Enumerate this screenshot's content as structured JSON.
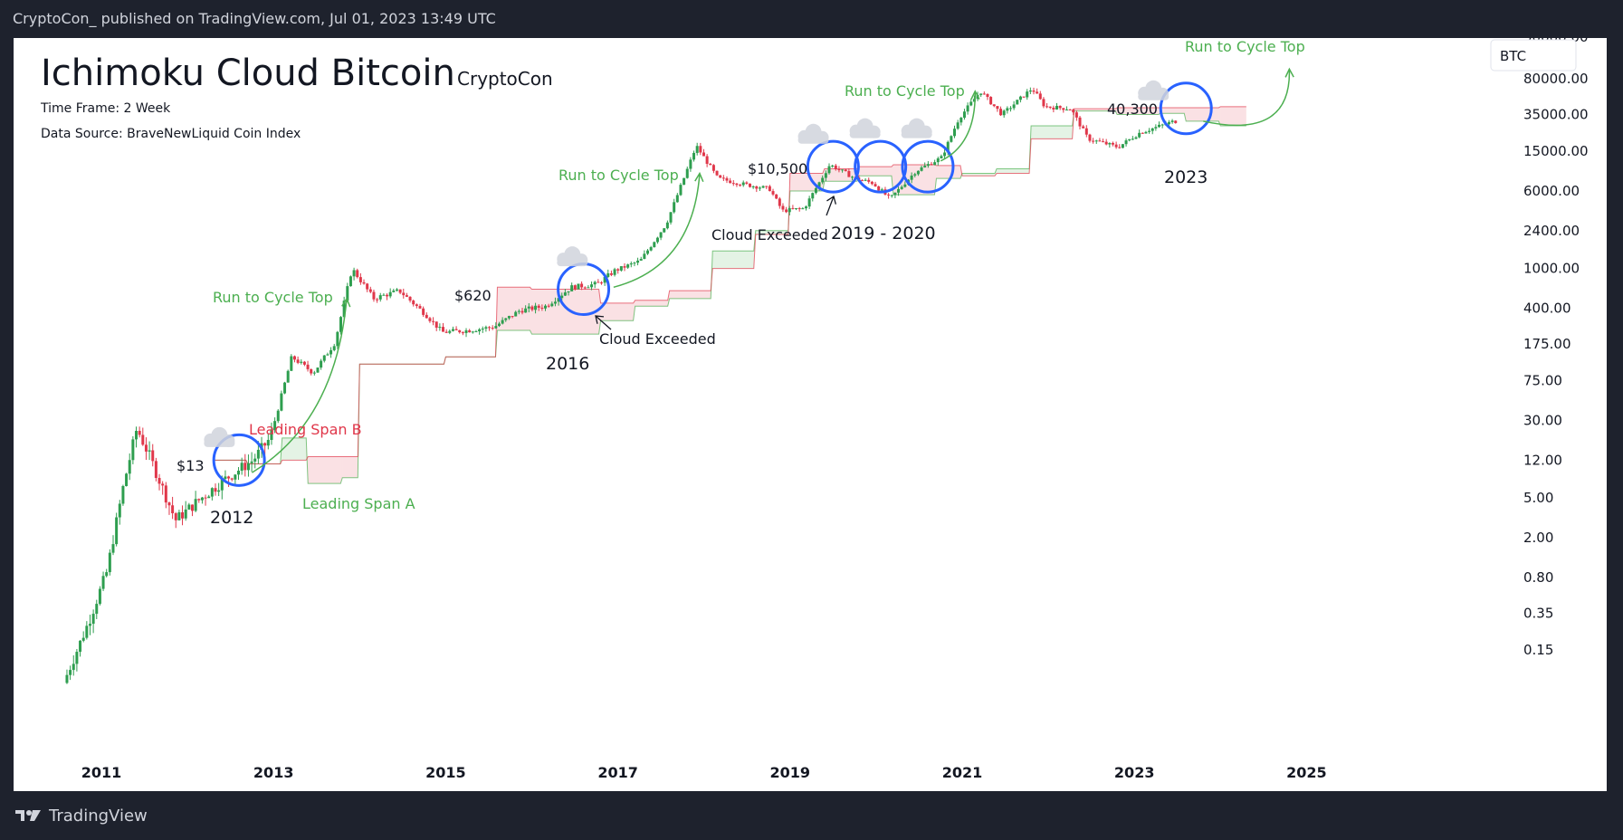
{
  "header": {
    "text": "CryptoCon_ published on TradingView.com, Jul 01, 2023 13:49 UTC"
  },
  "footer": {
    "brand": "TradingView"
  },
  "chart_data": {
    "type": "candlestick",
    "title": "Ichimoku Cloud Bitcoin",
    "author": "CryptoCon",
    "subtitle_lines": [
      "Time Frame: 2 Week",
      "Data Source: BraveNewLiquid Coin Index"
    ],
    "symbol": "BTC",
    "y_scale": "log",
    "x_ticks": [
      "2011",
      "2013",
      "2015",
      "2017",
      "2019",
      "2021",
      "2023",
      "2025"
    ],
    "y_ticks": [
      0.15,
      0.35,
      0.8,
      2.0,
      5.0,
      12.0,
      30.0,
      75.0,
      175.0,
      400.0,
      1000.0,
      2400.0,
      6000.0,
      15000.0,
      35000.0,
      80000.0
    ],
    "y_tick_labels": [
      "0.15",
      "0.35",
      "0.80",
      "2.00",
      "5.00",
      "12.00",
      "30.00",
      "75.00",
      "175.00",
      "400.00",
      "1000.00",
      "2400.00",
      "6000.00",
      "15000.00",
      "35000.00",
      "80000.00"
    ],
    "price_path": [
      [
        2010.6,
        0.07
      ],
      [
        2010.9,
        0.3
      ],
      [
        2011.1,
        0.9
      ],
      [
        2011.3,
        7
      ],
      [
        2011.45,
        25
      ],
      [
        2011.6,
        13
      ],
      [
        2011.9,
        3
      ],
      [
        2012.2,
        5
      ],
      [
        2012.5,
        8
      ],
      [
        2012.8,
        12
      ],
      [
        2013.0,
        20
      ],
      [
        2013.25,
        130
      ],
      [
        2013.5,
        90
      ],
      [
        2013.75,
        180
      ],
      [
        2013.95,
        1000
      ],
      [
        2014.2,
        500
      ],
      [
        2014.5,
        600
      ],
      [
        2014.8,
        350
      ],
      [
        2015.0,
        230
      ],
      [
        2015.3,
        240
      ],
      [
        2015.6,
        260
      ],
      [
        2015.9,
        380
      ],
      [
        2016.2,
        420
      ],
      [
        2016.5,
        650
      ],
      [
        2016.8,
        700
      ],
      [
        2017.0,
        950
      ],
      [
        2017.3,
        1200
      ],
      [
        2017.6,
        2800
      ],
      [
        2017.95,
        17000
      ],
      [
        2018.2,
        8000
      ],
      [
        2018.5,
        7000
      ],
      [
        2018.8,
        6300
      ],
      [
        2018.95,
        3800
      ],
      [
        2019.2,
        4000
      ],
      [
        2019.5,
        11000
      ],
      [
        2019.8,
        8000
      ],
      [
        2020.0,
        7200
      ],
      [
        2020.2,
        5000
      ],
      [
        2020.5,
        9500
      ],
      [
        2020.8,
        13000
      ],
      [
        2021.0,
        32000
      ],
      [
        2021.25,
        60000
      ],
      [
        2021.5,
        35000
      ],
      [
        2021.85,
        64000
      ],
      [
        2022.0,
        42000
      ],
      [
        2022.3,
        40000
      ],
      [
        2022.5,
        20000
      ],
      [
        2022.85,
        16500
      ],
      [
        2023.1,
        23000
      ],
      [
        2023.5,
        30000
      ]
    ],
    "leading_span_a": [
      [
        2012.3,
        12
      ],
      [
        2012.7,
        11
      ],
      [
        2013.1,
        20
      ],
      [
        2013.4,
        7
      ],
      [
        2013.8,
        8
      ],
      [
        2014.0,
        110
      ],
      [
        2014.6,
        110
      ],
      [
        2015.0,
        130
      ],
      [
        2015.6,
        240
      ],
      [
        2016.0,
        220
      ],
      [
        2016.8,
        300
      ],
      [
        2017.2,
        420
      ],
      [
        2017.6,
        500
      ],
      [
        2018.1,
        1500
      ],
      [
        2018.6,
        2400
      ],
      [
        2019.0,
        6000
      ],
      [
        2019.4,
        7500
      ],
      [
        2019.8,
        8500
      ],
      [
        2020.2,
        5500
      ],
      [
        2020.7,
        8000
      ],
      [
        2021.0,
        9000
      ],
      [
        2021.4,
        10000
      ],
      [
        2021.8,
        27000
      ],
      [
        2022.3,
        38000
      ],
      [
        2022.8,
        35000
      ],
      [
        2023.3,
        36000
      ],
      [
        2023.6,
        30000
      ],
      [
        2024.0,
        27000
      ],
      [
        2024.3,
        27000
      ]
    ],
    "leading_span_b": [
      [
        2012.3,
        12
      ],
      [
        2012.7,
        11
      ],
      [
        2013.1,
        12
      ],
      [
        2013.4,
        13
      ],
      [
        2013.8,
        13
      ],
      [
        2014.0,
        110
      ],
      [
        2014.6,
        110
      ],
      [
        2015.0,
        130
      ],
      [
        2015.6,
        650
      ],
      [
        2016.0,
        620
      ],
      [
        2016.8,
        450
      ],
      [
        2017.2,
        480
      ],
      [
        2017.6,
        600
      ],
      [
        2018.1,
        1000
      ],
      [
        2018.6,
        2200
      ],
      [
        2019.0,
        9000
      ],
      [
        2019.4,
        10000
      ],
      [
        2019.8,
        10500
      ],
      [
        2020.2,
        11000
      ],
      [
        2020.7,
        10800
      ],
      [
        2021.0,
        8500
      ],
      [
        2021.4,
        9000
      ],
      [
        2021.8,
        20000
      ],
      [
        2022.3,
        40000
      ],
      [
        2022.8,
        41000
      ],
      [
        2023.3,
        41000
      ],
      [
        2023.6,
        41000
      ],
      [
        2024.0,
        42000
      ],
      [
        2024.3,
        42000
      ]
    ],
    "price_labels": [
      "$13",
      "$620",
      "$10,500",
      "40,300"
    ],
    "cycle_labels": [
      "2012",
      "2016",
      "2019 - 2020",
      "2023"
    ],
    "annotations": {
      "run_to_cycle_top": "Run to Cycle Top",
      "cloud_exceeded": "Cloud Exceeded",
      "leading_span_a": "Leading Span A",
      "leading_span_b": "Leading Span B"
    },
    "colors": {
      "up": "#26a69a",
      "down": "#ef5350",
      "candle_up": "#2e9e4f",
      "candle_down": "#e0374a",
      "span_a": "#4caf50",
      "span_b": "#e0374a",
      "circle": "#2962ff",
      "annotation_green": "#4caf50",
      "annotation_red": "#e0374a"
    },
    "grid": false,
    "legend_position": "none"
  }
}
